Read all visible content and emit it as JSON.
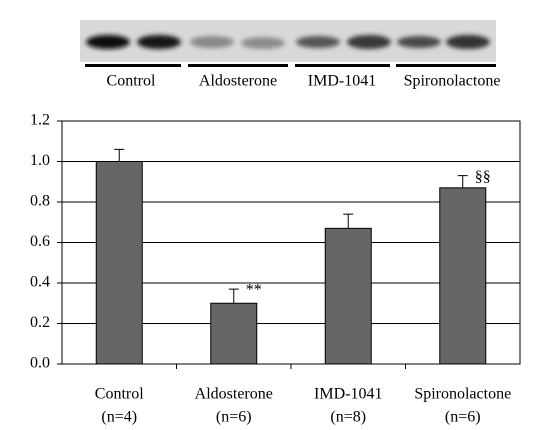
{
  "blot": {
    "groups": [
      "Control",
      "Aldosterone",
      "IMD-1041",
      "Spironolactone"
    ]
  },
  "chart_data": {
    "type": "bar",
    "categories": [
      "Control",
      "Aldosterone",
      "IMD-1041",
      "Spironolactone"
    ],
    "category_notes": [
      "(n=4)",
      "(n=6)",
      "(n=8)",
      "(n=6)"
    ],
    "values": [
      1.0,
      0.3,
      0.67,
      0.87
    ],
    "errors": [
      0.06,
      0.07,
      0.07,
      0.06
    ],
    "annotations": [
      null,
      "**",
      null,
      "§§"
    ],
    "color": "#666666",
    "ylim": [
      0,
      1.2
    ],
    "yticks": [
      {
        "value": 0,
        "label": "0.0"
      },
      0.2,
      0.4,
      0.6,
      0.8,
      {
        "value": 1,
        "label": "1.0"
      },
      1.2
    ],
    "grid": true
  }
}
